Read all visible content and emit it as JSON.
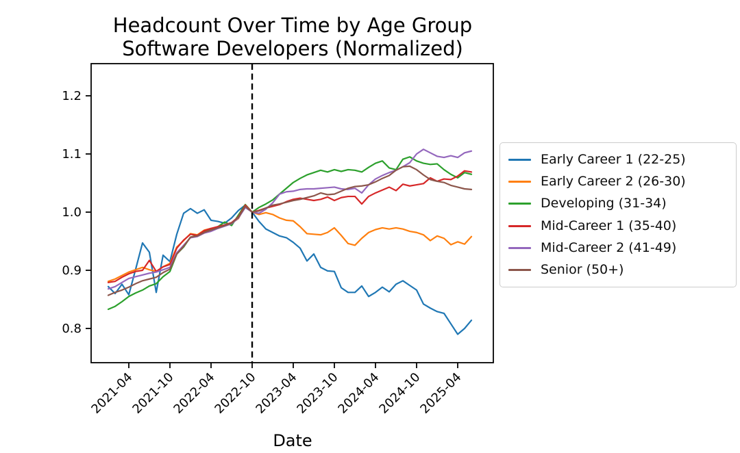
{
  "figure": {
    "title_line1": "Headcount Over Time by Age Group",
    "title_line2": "Software Developers (Normalized)",
    "xlabel": "Date"
  },
  "chart_data": {
    "type": "line",
    "title": "Headcount Over Time by Age Group — Software Developers (Normalized)",
    "xlabel": "Date",
    "ylabel": "",
    "grid": false,
    "legend_position": "right",
    "ylim": [
      0.741,
      1.255
    ],
    "y_ticks": [
      "0.8",
      "0.9",
      "1.0",
      "1.1",
      "1.2"
    ],
    "x_tick_labels": [
      "2021-04",
      "2021-10",
      "2022-04",
      "2022-10",
      "2023-04",
      "2023-10",
      "2024-04",
      "2024-10",
      "2025-04"
    ],
    "reference_line": {
      "type": "vertical-dashed",
      "x": "2022-10",
      "color": "#000000"
    },
    "x": [
      "2021-01",
      "2021-02",
      "2021-03",
      "2021-04",
      "2021-05",
      "2021-06",
      "2021-07",
      "2021-08",
      "2021-09",
      "2021-10",
      "2021-11",
      "2021-12",
      "2022-01",
      "2022-02",
      "2022-03",
      "2022-04",
      "2022-05",
      "2022-06",
      "2022-07",
      "2022-08",
      "2022-09",
      "2022-10",
      "2022-11",
      "2022-12",
      "2023-01",
      "2023-02",
      "2023-03",
      "2023-04",
      "2023-05",
      "2023-06",
      "2023-07",
      "2023-08",
      "2023-09",
      "2023-10",
      "2023-11",
      "2023-12",
      "2024-01",
      "2024-02",
      "2024-03",
      "2024-04",
      "2024-05",
      "2024-06",
      "2024-07",
      "2024-08",
      "2024-09",
      "2024-10",
      "2024-11",
      "2024-12",
      "2025-01",
      "2025-02",
      "2025-03",
      "2025-04",
      "2025-05",
      "2025-06"
    ],
    "series": [
      {
        "name": "Early Career 1 (22-25)",
        "color": "#1f77b4",
        "values": [
          0.872,
          0.86,
          0.876,
          0.858,
          0.902,
          0.947,
          0.931,
          0.862,
          0.926,
          0.915,
          0.962,
          0.998,
          1.006,
          0.998,
          1.004,
          0.986,
          0.984,
          0.981,
          0.99,
          1.003,
          1.012,
          1.0,
          0.984,
          0.971,
          0.965,
          0.959,
          0.956,
          0.948,
          0.938,
          0.916,
          0.928,
          0.905,
          0.899,
          0.898,
          0.87,
          0.862,
          0.862,
          0.873,
          0.855,
          0.862,
          0.871,
          0.863,
          0.876,
          0.882,
          0.874,
          0.866,
          0.842,
          0.835,
          0.829,
          0.826,
          0.808,
          0.79,
          0.8,
          0.814
        ]
      },
      {
        "name": "Early Career 2 (26-30)",
        "color": "#ff7f0e",
        "values": [
          0.881,
          0.885,
          0.891,
          0.897,
          0.901,
          0.905,
          0.901,
          0.898,
          0.906,
          0.912,
          0.94,
          0.951,
          0.963,
          0.961,
          0.969,
          0.972,
          0.974,
          0.977,
          0.981,
          0.989,
          1.011,
          1.0,
          0.996,
          0.999,
          0.996,
          0.99,
          0.986,
          0.985,
          0.975,
          0.963,
          0.962,
          0.961,
          0.965,
          0.973,
          0.96,
          0.946,
          0.943,
          0.955,
          0.965,
          0.97,
          0.973,
          0.971,
          0.973,
          0.971,
          0.967,
          0.965,
          0.961,
          0.951,
          0.959,
          0.955,
          0.944,
          0.949,
          0.945,
          0.958
        ]
      },
      {
        "name": "Developing (31-34)",
        "color": "#2ca02c",
        "values": [
          0.833,
          0.838,
          0.846,
          0.855,
          0.861,
          0.866,
          0.873,
          0.877,
          0.889,
          0.898,
          0.928,
          0.94,
          0.957,
          0.96,
          0.966,
          0.97,
          0.975,
          0.983,
          0.977,
          0.995,
          1.013,
          1.0,
          1.008,
          1.014,
          1.021,
          1.031,
          1.041,
          1.051,
          1.058,
          1.064,
          1.068,
          1.072,
          1.069,
          1.073,
          1.07,
          1.073,
          1.072,
          1.069,
          1.077,
          1.084,
          1.088,
          1.076,
          1.073,
          1.091,
          1.095,
          1.088,
          1.084,
          1.082,
          1.083,
          1.073,
          1.065,
          1.059,
          1.068,
          1.065
        ]
      },
      {
        "name": "Mid-Career 1 (35-40)",
        "color": "#d62728",
        "values": [
          0.879,
          0.881,
          0.888,
          0.894,
          0.898,
          0.9,
          0.917,
          0.898,
          0.906,
          0.91,
          0.938,
          0.952,
          0.962,
          0.96,
          0.968,
          0.972,
          0.975,
          0.978,
          0.982,
          0.992,
          1.012,
          1.0,
          1.003,
          1.007,
          1.01,
          1.013,
          1.018,
          1.022,
          1.024,
          1.022,
          1.02,
          1.022,
          1.026,
          1.02,
          1.025,
          1.027,
          1.027,
          1.014,
          1.027,
          1.033,
          1.038,
          1.043,
          1.037,
          1.048,
          1.045,
          1.047,
          1.049,
          1.059,
          1.053,
          1.057,
          1.056,
          1.062,
          1.071,
          1.069
        ]
      },
      {
        "name": "Mid-Career 2 (41-49)",
        "color": "#9467bd",
        "values": [
          0.868,
          0.872,
          0.879,
          0.886,
          0.889,
          0.892,
          0.895,
          0.897,
          0.901,
          0.905,
          0.93,
          0.943,
          0.956,
          0.958,
          0.964,
          0.967,
          0.972,
          0.976,
          0.98,
          0.99,
          1.008,
          1.0,
          0.998,
          1.005,
          1.016,
          1.031,
          1.035,
          1.036,
          1.039,
          1.04,
          1.04,
          1.041,
          1.042,
          1.043,
          1.04,
          1.039,
          1.041,
          1.033,
          1.047,
          1.057,
          1.063,
          1.068,
          1.072,
          1.078,
          1.085,
          1.1,
          1.108,
          1.102,
          1.096,
          1.094,
          1.097,
          1.094,
          1.102,
          1.105
        ]
      },
      {
        "name": "Senior (50+)",
        "color": "#8c564b",
        "values": [
          0.857,
          0.862,
          0.866,
          0.871,
          0.877,
          0.882,
          0.885,
          0.888,
          0.896,
          0.902,
          0.928,
          0.941,
          0.957,
          0.959,
          0.965,
          0.969,
          0.973,
          0.977,
          0.981,
          0.991,
          1.01,
          1.0,
          1.002,
          1.007,
          1.012,
          1.014,
          1.017,
          1.02,
          1.022,
          1.025,
          1.028,
          1.033,
          1.03,
          1.031,
          1.036,
          1.041,
          1.044,
          1.045,
          1.047,
          1.052,
          1.058,
          1.063,
          1.072,
          1.078,
          1.079,
          1.073,
          1.064,
          1.056,
          1.053,
          1.051,
          1.046,
          1.043,
          1.04,
          1.039
        ]
      }
    ]
  }
}
